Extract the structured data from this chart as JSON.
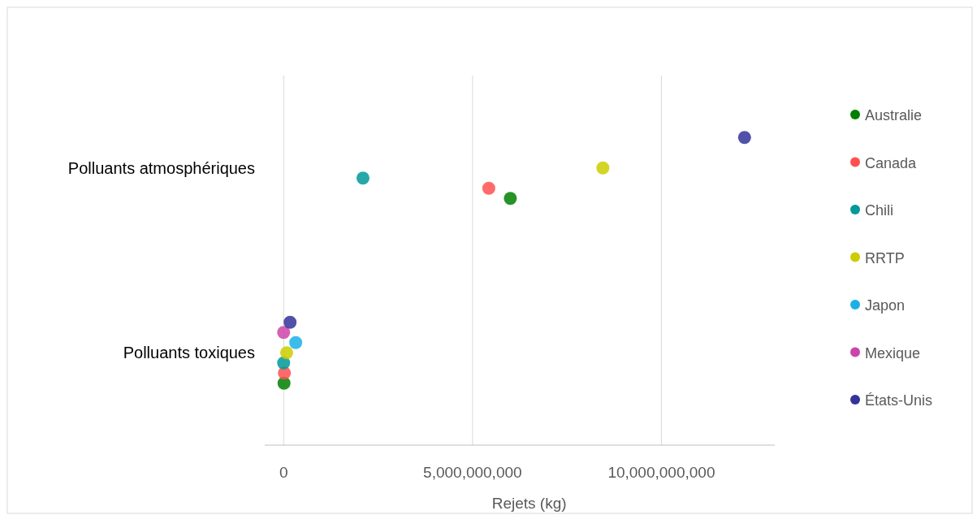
{
  "chart_data": {
    "type": "scatter",
    "xlabel": "Rejets (kg)",
    "categories": [
      "Polluants atmosphériques",
      "Polluants toxiques"
    ],
    "orientation": "horizontal",
    "xlim": [
      -500000000,
      13000000000
    ],
    "xticks": [
      0,
      {
        "value": 5000000000,
        "label": "5,000,000,000"
      },
      {
        "value": 10000000000,
        "label": "10,000,000,000"
      }
    ],
    "grid": "x",
    "legend": "right",
    "marker": "circle",
    "series": [
      {
        "name": "Australie",
        "color": "#008000",
        "values": [
          6000000000,
          10000000
        ]
      },
      {
        "name": "Canada",
        "color": "#ff5050",
        "values": [
          5430000000,
          20000000
        ]
      },
      {
        "name": "Chili",
        "color": "#009999",
        "values": [
          2100000000,
          0
        ]
      },
      {
        "name": "RRTP",
        "color": "#cccc00",
        "values": [
          8450000000,
          80000000
        ]
      },
      {
        "name": "Japon",
        "color": "#1ab0e6",
        "values": [
          null,
          320000000
        ]
      },
      {
        "name": "Mexique",
        "color": "#cc44aa",
        "values": [
          null,
          0
        ]
      },
      {
        "name": "États-Unis",
        "color": "#333399",
        "values": [
          12200000000,
          170000000
        ]
      }
    ]
  }
}
